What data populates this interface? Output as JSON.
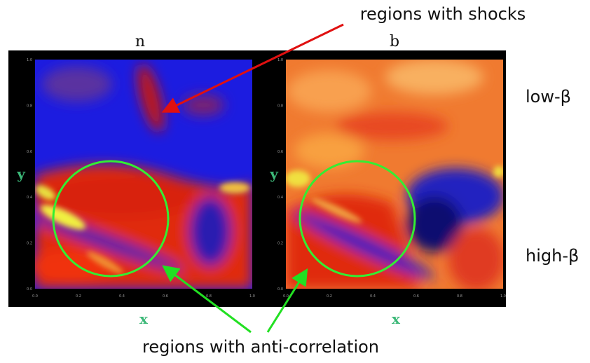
{
  "panels": [
    {
      "title": "n",
      "x_label": "x",
      "y_label": "y",
      "x_ticks": [
        "0.0",
        "0.2",
        "0.4",
        "0.6",
        "0.8",
        "1.0"
      ],
      "y_ticks": [
        "0.0",
        "0.2",
        "0.4",
        "0.6",
        "0.8",
        "1.0"
      ]
    },
    {
      "title": "b",
      "x_label": "x",
      "y_label": "y",
      "x_ticks": [
        "0.0",
        "0.2",
        "0.4",
        "0.6",
        "0.8",
        "1.0"
      ],
      "y_ticks": [
        "0.0",
        "0.2",
        "0.4",
        "0.6",
        "0.8",
        "1.0"
      ]
    }
  ],
  "annotations": {
    "shocks": "regions with shocks",
    "low_beta": "low-β",
    "high_beta": "high-β",
    "anti_correlation": "regions with anti-correlation"
  }
}
